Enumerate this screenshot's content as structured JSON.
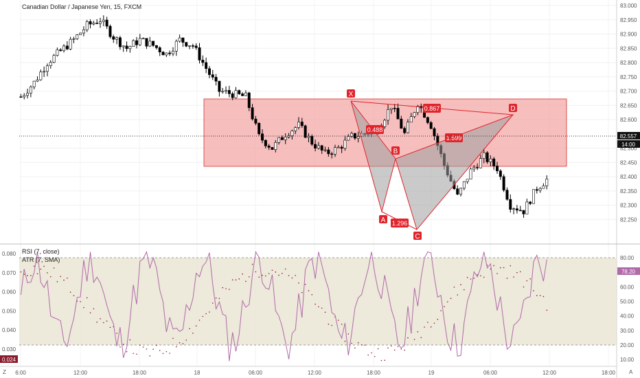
{
  "title": "Canadian Dollar / Japanese Yen, 15, FXCM",
  "indicators": {
    "rsi_label": "RSI (7, close)",
    "atr_label": "ATR (7, SMA)",
    "rsi_value": "78.20",
    "atr_value": "0.024"
  },
  "price_axis": {
    "ticks": [
      "83.000",
      "82.950",
      "82.900",
      "82.850",
      "82.800",
      "82.750",
      "82.700",
      "82.650",
      "82.600",
      "82.500",
      "82.450",
      "82.400",
      "82.350",
      "82.300",
      "82.250"
    ],
    "last_price": "82.557",
    "countdown": "14:00"
  },
  "rsi_axis": {
    "ticks": [
      "80.00",
      "70.00",
      "60.00",
      "50.00",
      "40.00",
      "30.00",
      "20.00",
      "10.00"
    ]
  },
  "atr_axis": {
    "ticks": [
      "0.080",
      "0.070",
      "0.060",
      "0.050",
      "0.040",
      "0.030"
    ]
  },
  "time_axis": {
    "ticks": [
      "6:00",
      "12:00",
      "18:00",
      "18",
      "06:00",
      "12:00",
      "18:00",
      "19",
      "06:00",
      "12:00",
      "18:00"
    ]
  },
  "corner": {
    "left": "Z",
    "right": "A"
  },
  "pattern": {
    "points": [
      "X",
      "A",
      "B",
      "C",
      "D"
    ],
    "ratios": [
      "0.867",
      "0.488",
      "1.599",
      "1.296"
    ]
  },
  "colors": {
    "up": "#ffffff",
    "down": "#000000",
    "zone_fill": "#f4a8a8",
    "zone_stroke": "#d9534f",
    "pattern_red": "#e0242b",
    "pattern_fill": "#9e9e9e",
    "rsi_line": "#b06aa8",
    "atr_dots": "#8b1a2a",
    "rsi_band": "#e9e3d2"
  },
  "chart_data": {
    "type": "candlestick",
    "title": "Canadian Dollar / Japanese Yen, 15, FXCM",
    "ylim": [
      82.2,
      83.0
    ],
    "last_price": 82.557,
    "close_path": [
      [
        0,
        82.68
      ],
      [
        4,
        82.73
      ],
      [
        8,
        82.8
      ],
      [
        12,
        82.84
      ],
      [
        16,
        82.88
      ],
      [
        20,
        82.93
      ],
      [
        24,
        82.95
      ],
      [
        28,
        82.89
      ],
      [
        32,
        82.85
      ],
      [
        36,
        82.88
      ],
      [
        40,
        82.86
      ],
      [
        44,
        82.83
      ],
      [
        48,
        82.88
      ],
      [
        52,
        82.86
      ],
      [
        56,
        82.78
      ],
      [
        60,
        82.7
      ],
      [
        64,
        82.69
      ],
      [
        68,
        82.68
      ],
      [
        72,
        82.54
      ],
      [
        76,
        82.5
      ],
      [
        80,
        82.55
      ],
      [
        84,
        82.58
      ],
      [
        88,
        82.52
      ],
      [
        92,
        82.48
      ],
      [
        96,
        82.5
      ],
      [
        100,
        82.54
      ],
      [
        104,
        82.55
      ],
      [
        108,
        82.57
      ],
      [
        112,
        82.65
      ],
      [
        116,
        82.55
      ],
      [
        120,
        82.66
      ],
      [
        124,
        82.58
      ],
      [
        128,
        82.44
      ],
      [
        132,
        82.33
      ],
      [
        136,
        82.42
      ],
      [
        140,
        82.47
      ],
      [
        144,
        82.43
      ],
      [
        148,
        82.3
      ],
      [
        152,
        82.28
      ],
      [
        156,
        82.36
      ],
      [
        160,
        82.4
      ],
      [
        164,
        82.44
      ],
      [
        168,
        82.52
      ],
      [
        172,
        82.57
      ],
      [
        176,
        82.55
      ],
      [
        180,
        82.56
      ]
    ],
    "resistance_zone": {
      "high": 82.68,
      "low": 82.46
    },
    "harmonic_pattern": {
      "X": 82.67,
      "A": 82.31,
      "B": 82.48,
      "C": 82.26,
      "D": 82.63,
      "ratios": {
        "XB": 0.488,
        "AC": 1.296,
        "BD": 1.599,
        "XD": 0.867
      }
    },
    "rsi": {
      "period": 7,
      "band": [
        20,
        80
      ],
      "last": 78.2
    },
    "atr": {
      "period": 7,
      "last": 0.024
    }
  }
}
